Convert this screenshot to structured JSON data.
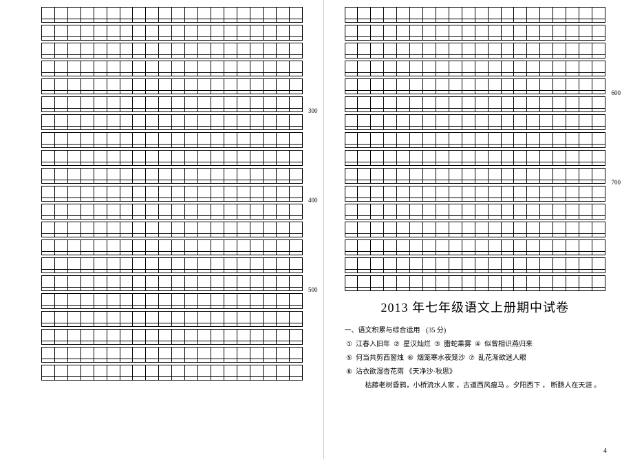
{
  "grid": {
    "cells_per_row": 20,
    "left_blocks": [
      {
        "rows": 1,
        "spacer": true
      },
      {
        "rows": 1,
        "spacer": true
      },
      {
        "rows": 1,
        "spacer": true
      },
      {
        "rows": 1,
        "spacer": true
      },
      {
        "rows": 1,
        "spacer": true
      },
      {
        "rows": 1,
        "spacer": true,
        "label": "300"
      },
      {
        "rows": 1,
        "spacer": true
      },
      {
        "rows": 1,
        "spacer": true
      },
      {
        "rows": 1,
        "spacer": true
      },
      {
        "rows": 1,
        "spacer": true
      },
      {
        "rows": 1,
        "spacer": true,
        "label": "400"
      },
      {
        "rows": 1,
        "spacer": true
      },
      {
        "rows": 1,
        "spacer": true
      },
      {
        "rows": 1,
        "spacer": true
      },
      {
        "rows": 1,
        "spacer": true
      },
      {
        "rows": 1,
        "spacer": true,
        "label": "500"
      },
      {
        "rows": 1,
        "spacer": true
      },
      {
        "rows": 1,
        "spacer": true
      },
      {
        "rows": 1,
        "spacer": true
      },
      {
        "rows": 1,
        "spacer": true
      },
      {
        "rows": 1,
        "spacer": true
      }
    ],
    "right_blocks": [
      {
        "rows": 1,
        "spacer": true
      },
      {
        "rows": 1,
        "spacer": true
      },
      {
        "rows": 1,
        "spacer": true
      },
      {
        "rows": 1,
        "spacer": true
      },
      {
        "rows": 1,
        "spacer": true,
        "label": "600"
      },
      {
        "rows": 1,
        "spacer": true
      },
      {
        "rows": 1,
        "spacer": true
      },
      {
        "rows": 1,
        "spacer": true
      },
      {
        "rows": 1,
        "spacer": true
      },
      {
        "rows": 1,
        "spacer": true,
        "label": "700"
      },
      {
        "rows": 1,
        "spacer": true
      },
      {
        "rows": 1,
        "spacer": true
      },
      {
        "rows": 1,
        "spacer": true
      },
      {
        "rows": 1,
        "spacer": true
      },
      {
        "rows": 1,
        "spacer": true
      },
      {
        "rows": 1,
        "spacer": true
      }
    ]
  },
  "exam": {
    "title": "2013 年七年级语文上册期中试卷",
    "section_heading": "一、语文积累与综合运用",
    "section_points": "(35 分)",
    "lines": [
      [
        {
          "num": "①",
          "text": "江春入旧年"
        },
        {
          "num": "②",
          "text": "星汉灿烂"
        },
        {
          "num": "③",
          "text": "腊蛇乘雾"
        },
        {
          "num": "④",
          "text": "似曾相识燕归来"
        }
      ],
      [
        {
          "num": "⑤",
          "text": "何当共剪西窗烛"
        },
        {
          "num": "⑥",
          "text": "烟笼寒水夜笼沙"
        },
        {
          "num": "⑦",
          "text": "乱花渐欲迷人眼"
        }
      ],
      [
        {
          "num": "⑧",
          "text": "沾衣欲湿杏花雨"
        },
        {
          "num": "",
          "text": "《天净沙·秋思》"
        }
      ]
    ],
    "indent_line": "枯藤老树昏鸦，小桥流水人家 ，古道西风瘦马 。夕阳西下 ， 断肠人在天涯   。",
    "page_number": "4"
  }
}
